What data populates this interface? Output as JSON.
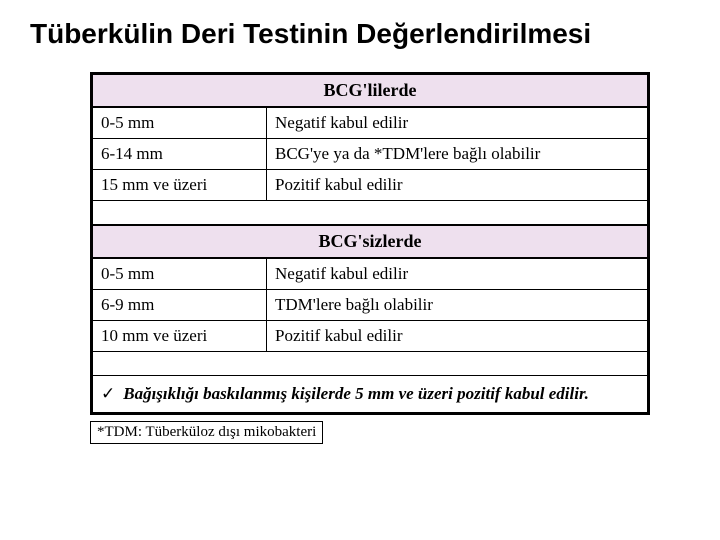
{
  "slide": {
    "title": "Tüberkülin Deri Testinin  Değerlendirilmesi"
  },
  "table": {
    "sections": [
      {
        "header": "BCG'lilerde",
        "rows": [
          {
            "range": "0-5 mm",
            "result": "Negatif kabul edilir"
          },
          {
            "range": "6-14 mm",
            "result": "BCG'ye ya da *TDM'lere bağlı olabilir"
          },
          {
            "range": "15 mm ve üzeri",
            "result": "Pozitif kabul edilir"
          }
        ]
      },
      {
        "header": "BCG'sizlerde",
        "rows": [
          {
            "range": "0-5 mm",
            "result": "Negatif kabul edilir"
          },
          {
            "range": "6-9 mm",
            "result": "TDM'lere bağlı olabilir"
          },
          {
            "range": "10 mm ve üzeri",
            "result": "Pozitif kabul edilir"
          }
        ]
      }
    ],
    "note_mark": "✓",
    "note": "Bağışıklığı baskılanmış kişilerde 5 mm ve üzeri pozitif kabul edilir."
  },
  "footnote": "*TDM: Tüberküloz dışı mikobakteri"
}
